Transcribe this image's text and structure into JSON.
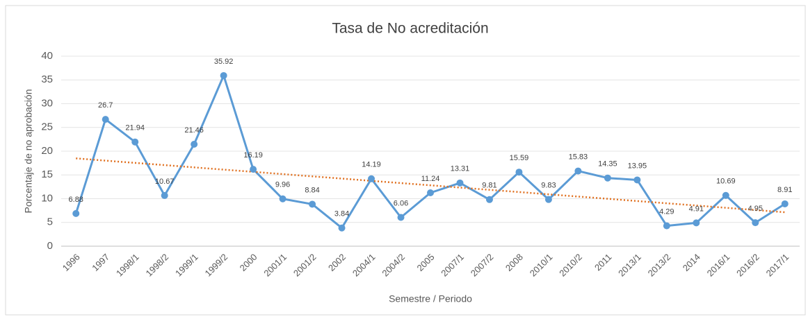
{
  "chart_data": {
    "type": "line",
    "title": "Tasa de No acreditación",
    "x_label": "Semestre / Periodo",
    "y_label": "Porcentaje de no aprobación",
    "categories": [
      "1996",
      "1997",
      "1998/1",
      "1998/2",
      "1999/1",
      "1999/2",
      "2000",
      "2001/1",
      "2001/2",
      "2002",
      "2004/1",
      "2004/2",
      "2005",
      "2007/1",
      "2007/2",
      "2008",
      "2010/1",
      "2010/2",
      "2011",
      "2013/1",
      "2013/2",
      "2014",
      "2016/1",
      "2016/2",
      "2017/1"
    ],
    "series": [
      {
        "name": "Tasa de No acreditación",
        "color": "#5b9bd5",
        "values": [
          6.88,
          26.7,
          21.94,
          10.67,
          21.46,
          35.92,
          16.19,
          9.96,
          8.84,
          3.84,
          14.19,
          6.06,
          11.24,
          13.31,
          9.81,
          15.59,
          9.83,
          15.83,
          14.35,
          13.95,
          4.29,
          4.91,
          10.69,
          4.95,
          8.91
        ]
      }
    ],
    "ylim": [
      0,
      40
    ],
    "yticks": [
      0,
      5,
      10,
      15,
      20,
      25,
      30,
      35,
      40
    ],
    "grid": true,
    "trendline": "linear",
    "trendline_color": "#e07020"
  }
}
